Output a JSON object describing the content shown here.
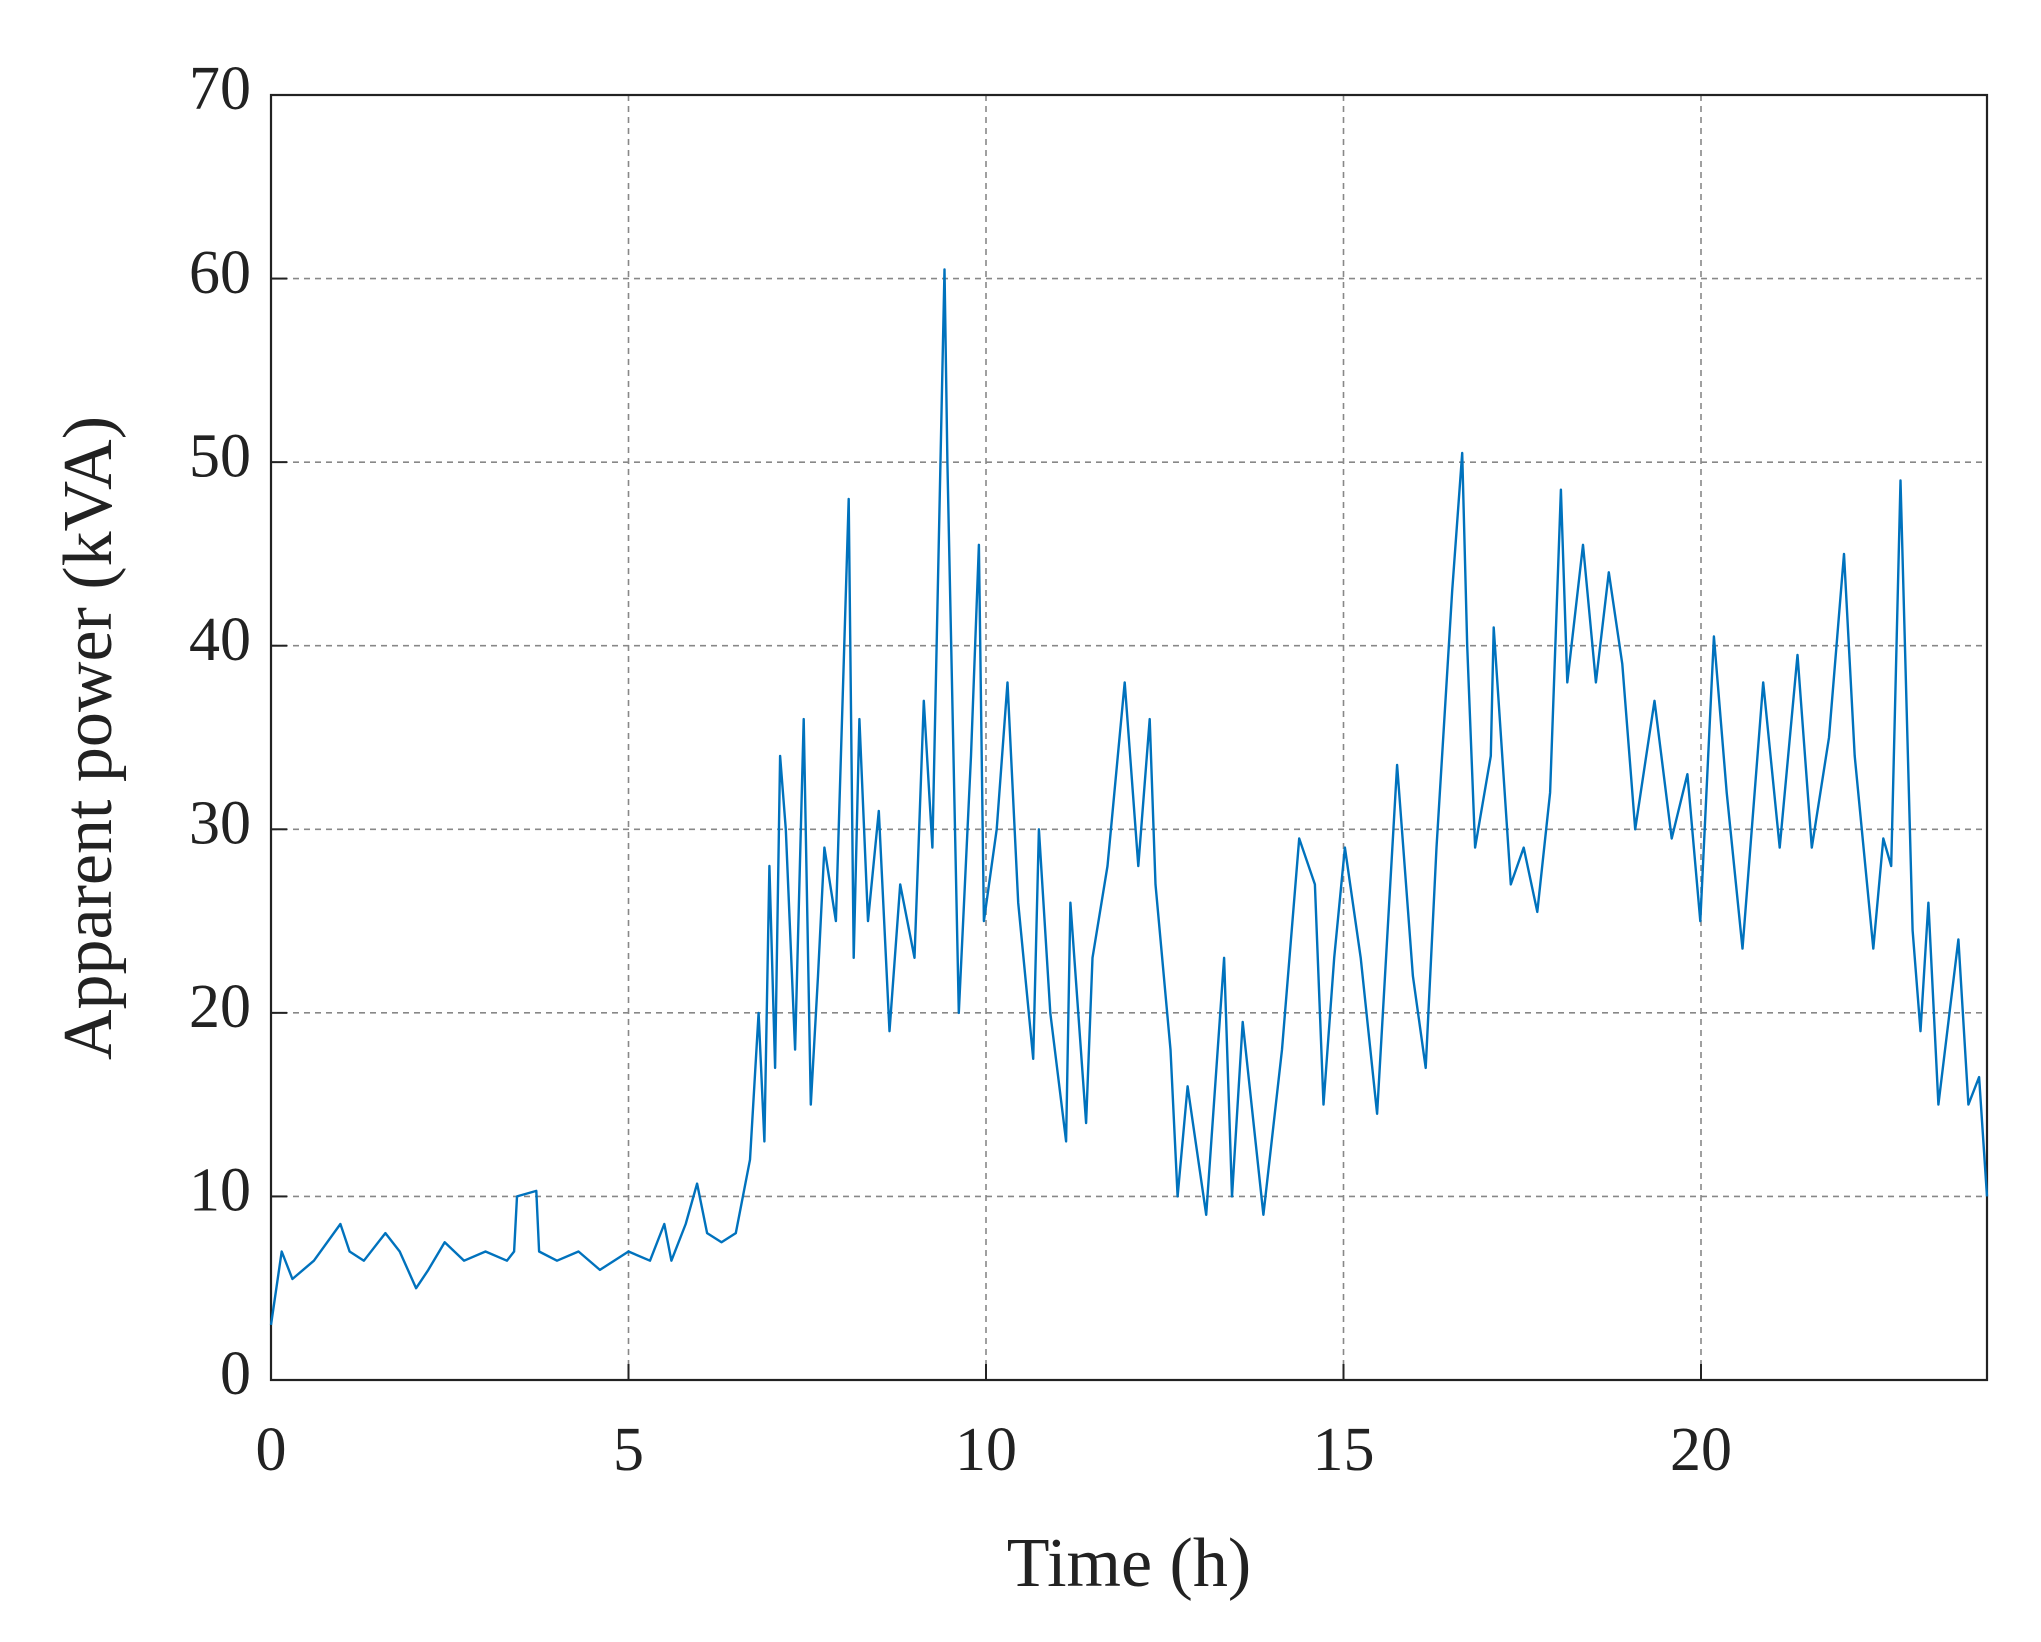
{
  "chart_data": {
    "type": "line",
    "x_label": "Time (h)",
    "y_label": "Apparent power (kVA)",
    "xlim": [
      0,
      24
    ],
    "ylim": [
      0,
      70
    ],
    "xticks": [
      0,
      5,
      10,
      15,
      20
    ],
    "yticks": [
      0,
      10,
      20,
      30,
      40,
      50,
      60,
      70
    ],
    "grid": true,
    "series": [
      {
        "color": "#0072bd",
        "x": [
          0,
          0.15,
          0.3,
          0.6,
          0.97,
          1.1,
          1.3,
          1.6,
          1.8,
          2.03,
          2.2,
          2.43,
          2.7,
          3.0,
          3.3,
          3.4,
          3.44,
          3.71,
          3.75,
          4.0,
          4.3,
          4.6,
          5.0,
          5.3,
          5.5,
          5.6,
          5.8,
          5.96,
          6.1,
          6.3,
          6.5,
          6.7,
          6.82,
          6.9,
          6.97,
          7.05,
          7.12,
          7.2,
          7.33,
          7.45,
          7.55,
          7.65,
          7.74,
          7.9,
          8.08,
          8.15,
          8.23,
          8.35,
          8.5,
          8.65,
          8.8,
          9.0,
          9.13,
          9.25,
          9.42,
          9.46,
          9.62,
          9.79,
          9.9,
          9.97,
          10.15,
          10.3,
          10.45,
          10.66,
          10.74,
          10.9,
          11.12,
          11.18,
          11.4,
          11.49,
          11.7,
          11.94,
          12.13,
          12.29,
          12.37,
          12.58,
          12.68,
          12.82,
          13.08,
          13.33,
          13.44,
          13.59,
          13.88,
          14.14,
          14.38,
          14.6,
          14.72,
          14.87,
          15.02,
          15.24,
          15.47,
          15.75,
          15.97,
          16.15,
          16.3,
          16.52,
          16.66,
          16.73,
          16.84,
          17.06,
          17.1,
          17.34,
          17.52,
          17.71,
          17.89,
          18.04,
          18.13,
          18.35,
          18.53,
          18.71,
          18.9,
          19.08,
          19.35,
          19.59,
          19.81,
          19.99,
          20.18,
          20.36,
          20.58,
          20.87,
          21.1,
          21.35,
          21.55,
          21.79,
          22.0,
          22.15,
          22.41,
          22.55,
          22.66,
          22.79,
          22.96,
          23.07,
          23.18,
          23.32,
          23.6,
          23.74,
          23.89,
          24
        ],
        "values": [
          3,
          7,
          5.5,
          6.5,
          8.5,
          7,
          6.5,
          8,
          7,
          5,
          6,
          7.5,
          6.5,
          7,
          6.5,
          7,
          10,
          10.3,
          7,
          6.5,
          7,
          6,
          7,
          6.5,
          8.5,
          6.5,
          8.5,
          10.7,
          8,
          7.5,
          8,
          12,
          20,
          13,
          28,
          17,
          34,
          30,
          18,
          36,
          15,
          22,
          29,
          25,
          48,
          23,
          36,
          25,
          31,
          19,
          27,
          23,
          37,
          29,
          60.5,
          50,
          20,
          34,
          45.5,
          25,
          30,
          38,
          26,
          17.5,
          30,
          20,
          13,
          26,
          14,
          23,
          28,
          38,
          28,
          36,
          27,
          18,
          10,
          16,
          9,
          23,
          10,
          19.5,
          9,
          18,
          29.5,
          27,
          15,
          23,
          29,
          23,
          14.5,
          33.5,
          22,
          17,
          29,
          43,
          50.5,
          40,
          29,
          34,
          41,
          27,
          29,
          25.5,
          32,
          48.5,
          38,
          45.5,
          38,
          44,
          39,
          30,
          37,
          29.5,
          33,
          25,
          40.5,
          32,
          23.5,
          38,
          29,
          39.5,
          29,
          35,
          45,
          34,
          23.5,
          29.5,
          28,
          49,
          24.5,
          19,
          26,
          15,
          24,
          15,
          16.5,
          10
        ]
      }
    ]
  }
}
